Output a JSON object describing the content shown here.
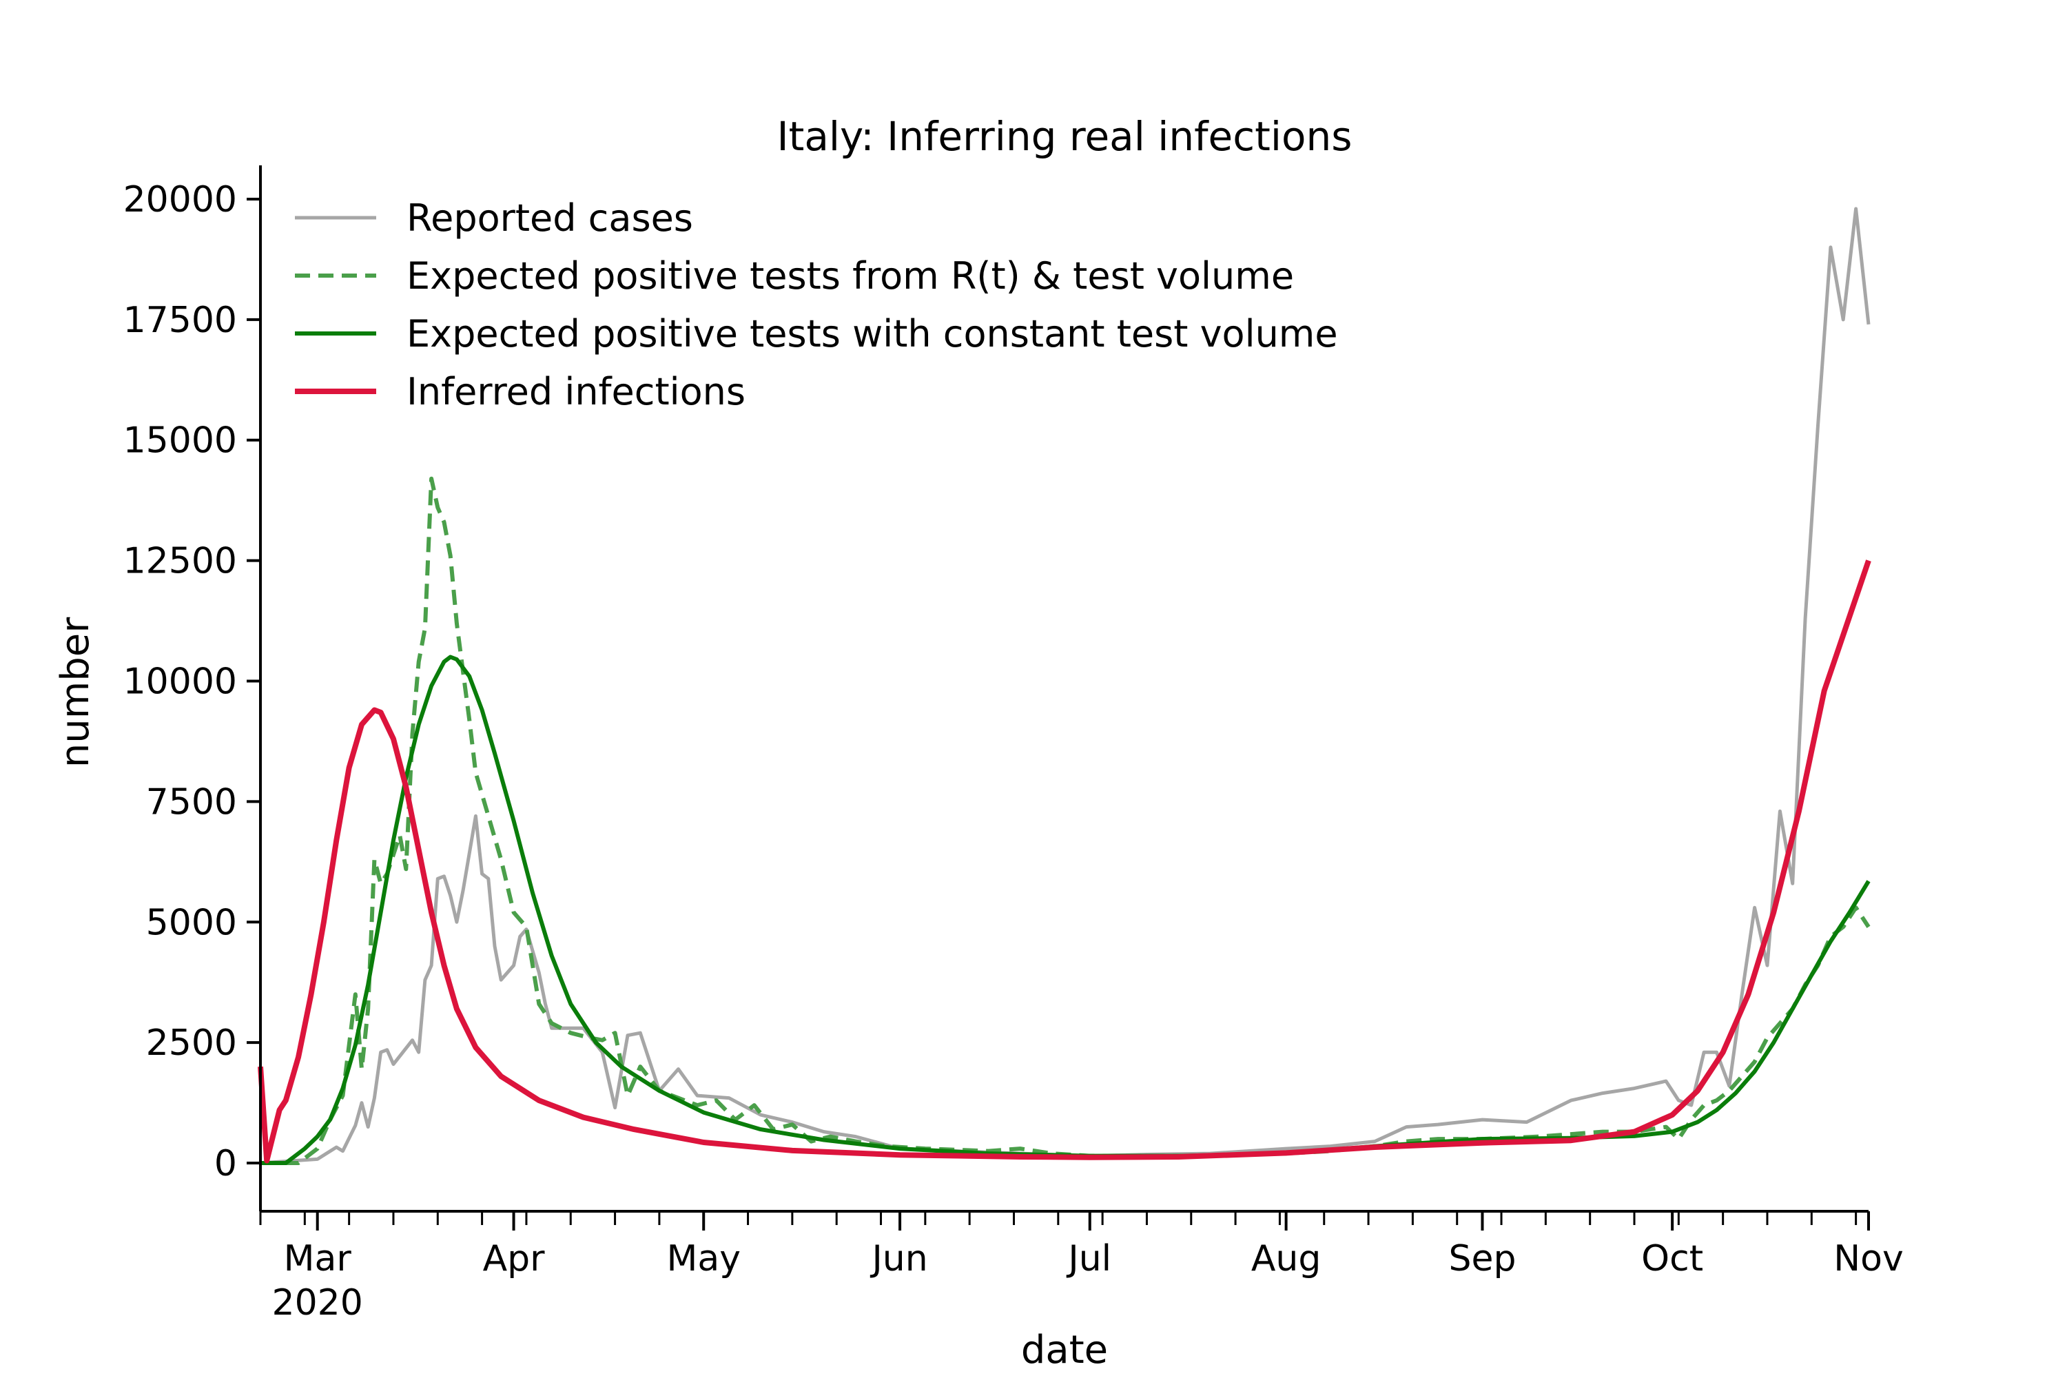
{
  "chart_data": {
    "type": "line",
    "title": "Italy: Inferring real infections",
    "xlabel": "date",
    "ylabel": "number",
    "xlim": [
      "2020-02-21",
      "2020-11-01"
    ],
    "ylim": [
      -1000,
      20700
    ],
    "x_ticks": [
      {
        "date": "2020-03-01",
        "label": "Mar",
        "sublabel": "2020"
      },
      {
        "date": "2020-04-01",
        "label": "Apr"
      },
      {
        "date": "2020-05-01",
        "label": "May"
      },
      {
        "date": "2020-06-01",
        "label": "Jun"
      },
      {
        "date": "2020-07-01",
        "label": "Jul"
      },
      {
        "date": "2020-08-01",
        "label": "Aug"
      },
      {
        "date": "2020-09-01",
        "label": "Sep"
      },
      {
        "date": "2020-10-01",
        "label": "Oct"
      },
      {
        "date": "2020-11-01",
        "label": "Nov"
      }
    ],
    "y_ticks": [
      0,
      2500,
      5000,
      7500,
      10000,
      12500,
      15000,
      17500,
      20000
    ],
    "y_tick_labels": [
      "0",
      "2500",
      "5000",
      "7500",
      "10000",
      "12500",
      "15000",
      "17500",
      "20000"
    ],
    "grid": false,
    "legend_position": "top-left",
    "series": [
      {
        "name": "Reported cases",
        "color": "#a6a6a6",
        "style": "solid",
        "points": [
          [
            "2020-02-21",
            0
          ],
          [
            "2020-03-01",
            80
          ],
          [
            "2020-03-04",
            330
          ],
          [
            "2020-03-05",
            250
          ],
          [
            "2020-03-07",
            780
          ],
          [
            "2020-03-08",
            1250
          ],
          [
            "2020-03-09",
            750
          ],
          [
            "2020-03-10",
            1350
          ],
          [
            "2020-03-11",
            2300
          ],
          [
            "2020-03-12",
            2350
          ],
          [
            "2020-03-13",
            2050
          ],
          [
            "2020-03-16",
            2550
          ],
          [
            "2020-03-17",
            2300
          ],
          [
            "2020-03-18",
            3800
          ],
          [
            "2020-03-19",
            4100
          ],
          [
            "2020-03-20",
            5900
          ],
          [
            "2020-03-21",
            5950
          ],
          [
            "2020-03-22",
            5550
          ],
          [
            "2020-03-23",
            5000
          ],
          [
            "2020-03-24",
            5650
          ],
          [
            "2020-03-26",
            7200
          ],
          [
            "2020-03-27",
            6000
          ],
          [
            "2020-03-28",
            5900
          ],
          [
            "2020-03-29",
            4500
          ],
          [
            "2020-03-30",
            3800
          ],
          [
            "2020-04-01",
            4100
          ],
          [
            "2020-04-02",
            4700
          ],
          [
            "2020-04-03",
            4850
          ],
          [
            "2020-04-05",
            3950
          ],
          [
            "2020-04-06",
            3300
          ],
          [
            "2020-04-07",
            2800
          ],
          [
            "2020-04-09",
            2800
          ],
          [
            "2020-04-12",
            2800
          ],
          [
            "2020-04-15",
            2300
          ],
          [
            "2020-04-17",
            1150
          ],
          [
            "2020-04-19",
            2650
          ],
          [
            "2020-04-21",
            2700
          ],
          [
            "2020-04-24",
            1500
          ],
          [
            "2020-04-27",
            1950
          ],
          [
            "2020-04-30",
            1400
          ],
          [
            "2020-05-05",
            1350
          ],
          [
            "2020-05-10",
            1000
          ],
          [
            "2020-05-15",
            850
          ],
          [
            "2020-05-20",
            650
          ],
          [
            "2020-05-25",
            550
          ],
          [
            "2020-06-01",
            300
          ],
          [
            "2020-06-10",
            250
          ],
          [
            "2020-06-20",
            200
          ],
          [
            "2020-07-01",
            150
          ],
          [
            "2020-07-10",
            180
          ],
          [
            "2020-07-20",
            200
          ],
          [
            "2020-08-01",
            300
          ],
          [
            "2020-08-08",
            350
          ],
          [
            "2020-08-15",
            450
          ],
          [
            "2020-08-20",
            750
          ],
          [
            "2020-08-25",
            800
          ],
          [
            "2020-09-01",
            900
          ],
          [
            "2020-09-08",
            850
          ],
          [
            "2020-09-15",
            1300
          ],
          [
            "2020-09-20",
            1450
          ],
          [
            "2020-09-25",
            1550
          ],
          [
            "2020-09-30",
            1700
          ],
          [
            "2020-10-02",
            1300
          ],
          [
            "2020-10-04",
            1200
          ],
          [
            "2020-10-06",
            2300
          ],
          [
            "2020-10-08",
            2300
          ],
          [
            "2020-10-10",
            1600
          ],
          [
            "2020-10-12",
            3500
          ],
          [
            "2020-10-14",
            5300
          ],
          [
            "2020-10-16",
            4100
          ],
          [
            "2020-10-18",
            7300
          ],
          [
            "2020-10-20",
            5800
          ],
          [
            "2020-10-22",
            11300
          ],
          [
            "2020-10-24",
            15300
          ],
          [
            "2020-10-26",
            19000
          ],
          [
            "2020-10-28",
            17500
          ],
          [
            "2020-10-30",
            19800
          ],
          [
            "2020-11-01",
            17400
          ]
        ]
      },
      {
        "name": "Expected positive tests from R(t) & test volume",
        "color": "#4a9f4a",
        "style": "dashed",
        "points": [
          [
            "2020-02-21",
            0
          ],
          [
            "2020-02-27",
            0
          ],
          [
            "2020-03-01",
            300
          ],
          [
            "2020-03-03",
            900
          ],
          [
            "2020-03-05",
            1400
          ],
          [
            "2020-03-07",
            3500
          ],
          [
            "2020-03-08",
            1950
          ],
          [
            "2020-03-09",
            3200
          ],
          [
            "2020-03-10",
            6300
          ],
          [
            "2020-03-11",
            5800
          ],
          [
            "2020-03-12",
            6000
          ],
          [
            "2020-03-14",
            6800
          ],
          [
            "2020-03-15",
            6100
          ],
          [
            "2020-03-16",
            8900
          ],
          [
            "2020-03-17",
            10400
          ],
          [
            "2020-03-18",
            11100
          ],
          [
            "2020-03-19",
            14200
          ],
          [
            "2020-03-20",
            13600
          ],
          [
            "2020-03-21",
            13300
          ],
          [
            "2020-03-22",
            12600
          ],
          [
            "2020-03-23",
            11200
          ],
          [
            "2020-03-24",
            10200
          ],
          [
            "2020-03-25",
            9200
          ],
          [
            "2020-03-26",
            8100
          ],
          [
            "2020-03-28",
            7200
          ],
          [
            "2020-03-30",
            6300
          ],
          [
            "2020-04-01",
            5200
          ],
          [
            "2020-04-03",
            4900
          ],
          [
            "2020-04-05",
            3300
          ],
          [
            "2020-04-07",
            2900
          ],
          [
            "2020-04-10",
            2700
          ],
          [
            "2020-04-13",
            2600
          ],
          [
            "2020-04-15",
            2550
          ],
          [
            "2020-04-17",
            2700
          ],
          [
            "2020-04-19",
            1400
          ],
          [
            "2020-04-21",
            2000
          ],
          [
            "2020-04-24",
            1500
          ],
          [
            "2020-04-27",
            1350
          ],
          [
            "2020-04-30",
            1200
          ],
          [
            "2020-05-03",
            1300
          ],
          [
            "2020-05-06",
            900
          ],
          [
            "2020-05-09",
            1200
          ],
          [
            "2020-05-12",
            700
          ],
          [
            "2020-05-15",
            800
          ],
          [
            "2020-05-18",
            450
          ],
          [
            "2020-05-21",
            550
          ],
          [
            "2020-05-25",
            450
          ],
          [
            "2020-05-30",
            350
          ],
          [
            "2020-06-05",
            300
          ],
          [
            "2020-06-15",
            250
          ],
          [
            "2020-06-20",
            300
          ],
          [
            "2020-06-25",
            200
          ],
          [
            "2020-07-01",
            150
          ],
          [
            "2020-07-10",
            150
          ],
          [
            "2020-07-20",
            150
          ],
          [
            "2020-08-01",
            200
          ],
          [
            "2020-08-08",
            250
          ],
          [
            "2020-08-15",
            350
          ],
          [
            "2020-08-20",
            450
          ],
          [
            "2020-08-25",
            500
          ],
          [
            "2020-09-01",
            500
          ],
          [
            "2020-09-10",
            550
          ],
          [
            "2020-09-15",
            600
          ],
          [
            "2020-09-20",
            650
          ],
          [
            "2020-09-25",
            650
          ],
          [
            "2020-09-30",
            750
          ],
          [
            "2020-10-02",
            500
          ],
          [
            "2020-10-04",
            900
          ],
          [
            "2020-10-06",
            1200
          ],
          [
            "2020-10-08",
            1300
          ],
          [
            "2020-10-10",
            1500
          ],
          [
            "2020-10-12",
            1800
          ],
          [
            "2020-10-14",
            2100
          ],
          [
            "2020-10-16",
            2600
          ],
          [
            "2020-10-18",
            2900
          ],
          [
            "2020-10-20",
            3200
          ],
          [
            "2020-10-22",
            3700
          ],
          [
            "2020-10-24",
            4100
          ],
          [
            "2020-10-26",
            4700
          ],
          [
            "2020-10-28",
            4900
          ],
          [
            "2020-10-30",
            5300
          ],
          [
            "2020-11-01",
            4900
          ]
        ]
      },
      {
        "name": "Expected positive tests with constant test volume",
        "color": "#0a7d0a",
        "style": "solid",
        "points": [
          [
            "2020-02-21",
            0
          ],
          [
            "2020-02-25",
            0
          ],
          [
            "2020-02-28",
            300
          ],
          [
            "2020-03-01",
            550
          ],
          [
            "2020-03-03",
            900
          ],
          [
            "2020-03-05",
            1550
          ],
          [
            "2020-03-07",
            2450
          ],
          [
            "2020-03-09",
            3700
          ],
          [
            "2020-03-11",
            5200
          ],
          [
            "2020-03-13",
            6700
          ],
          [
            "2020-03-15",
            8000
          ],
          [
            "2020-03-17",
            9100
          ],
          [
            "2020-03-19",
            9900
          ],
          [
            "2020-03-21",
            10400
          ],
          [
            "2020-03-22",
            10500
          ],
          [
            "2020-03-23",
            10450
          ],
          [
            "2020-03-25",
            10100
          ],
          [
            "2020-03-27",
            9400
          ],
          [
            "2020-03-29",
            8500
          ],
          [
            "2020-04-01",
            7100
          ],
          [
            "2020-04-04",
            5600
          ],
          [
            "2020-04-07",
            4300
          ],
          [
            "2020-04-10",
            3300
          ],
          [
            "2020-04-14",
            2500
          ],
          [
            "2020-04-18",
            2000
          ],
          [
            "2020-04-24",
            1500
          ],
          [
            "2020-05-01",
            1050
          ],
          [
            "2020-05-10",
            700
          ],
          [
            "2020-05-20",
            480
          ],
          [
            "2020-06-01",
            300
          ],
          [
            "2020-06-15",
            200
          ],
          [
            "2020-07-01",
            150
          ],
          [
            "2020-07-15",
            150
          ],
          [
            "2020-08-01",
            200
          ],
          [
            "2020-08-15",
            350
          ],
          [
            "2020-09-01",
            500
          ],
          [
            "2020-09-15",
            520
          ],
          [
            "2020-09-25",
            560
          ],
          [
            "2020-10-01",
            650
          ],
          [
            "2020-10-05",
            850
          ],
          [
            "2020-10-08",
            1100
          ],
          [
            "2020-10-11",
            1450
          ],
          [
            "2020-10-14",
            1900
          ],
          [
            "2020-10-17",
            2500
          ],
          [
            "2020-10-20",
            3200
          ],
          [
            "2020-10-23",
            3900
          ],
          [
            "2020-10-26",
            4600
          ],
          [
            "2020-10-29",
            5200
          ],
          [
            "2020-11-01",
            5850
          ]
        ]
      },
      {
        "name": "Inferred infections",
        "color": "#dc143c",
        "style": "solid",
        "points": [
          [
            "2020-02-21",
            2000
          ],
          [
            "2020-02-22",
            50
          ],
          [
            "2020-02-24",
            1100
          ],
          [
            "2020-02-25",
            1300
          ],
          [
            "2020-02-27",
            2200
          ],
          [
            "2020-02-29",
            3500
          ],
          [
            "2020-03-02",
            5000
          ],
          [
            "2020-03-04",
            6700
          ],
          [
            "2020-03-06",
            8200
          ],
          [
            "2020-03-08",
            9100
          ],
          [
            "2020-03-10",
            9400
          ],
          [
            "2020-03-11",
            9350
          ],
          [
            "2020-03-13",
            8800
          ],
          [
            "2020-03-15",
            7800
          ],
          [
            "2020-03-17",
            6500
          ],
          [
            "2020-03-19",
            5200
          ],
          [
            "2020-03-21",
            4100
          ],
          [
            "2020-03-23",
            3200
          ],
          [
            "2020-03-26",
            2400
          ],
          [
            "2020-03-30",
            1800
          ],
          [
            "2020-04-05",
            1300
          ],
          [
            "2020-04-12",
            950
          ],
          [
            "2020-04-20",
            700
          ],
          [
            "2020-05-01",
            430
          ],
          [
            "2020-05-15",
            260
          ],
          [
            "2020-06-01",
            170
          ],
          [
            "2020-06-20",
            130
          ],
          [
            "2020-07-01",
            120
          ],
          [
            "2020-07-15",
            130
          ],
          [
            "2020-08-01",
            210
          ],
          [
            "2020-08-15",
            330
          ],
          [
            "2020-09-01",
            420
          ],
          [
            "2020-09-15",
            470
          ],
          [
            "2020-09-25",
            650
          ],
          [
            "2020-10-01",
            1000
          ],
          [
            "2020-10-05",
            1500
          ],
          [
            "2020-10-09",
            2300
          ],
          [
            "2020-10-13",
            3500
          ],
          [
            "2020-10-17",
            5200
          ],
          [
            "2020-10-21",
            7300
          ],
          [
            "2020-10-25",
            9800
          ],
          [
            "2020-11-01",
            12500
          ]
        ]
      }
    ]
  }
}
